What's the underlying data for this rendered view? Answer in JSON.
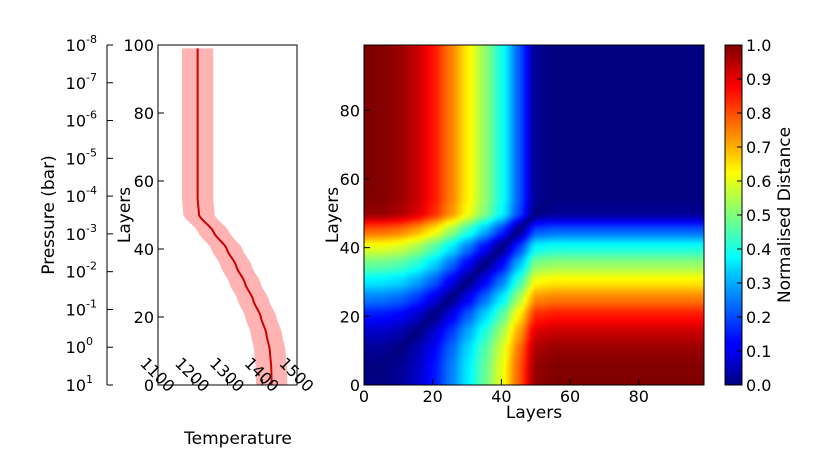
{
  "chart_data": [
    {
      "type": "line",
      "xlabel": "Temperature",
      "ylabel": "Layers",
      "ylabel2": "Pressure (bar)",
      "xlim": [
        1100,
        1500
      ],
      "ylim": [
        0,
        100
      ],
      "xticks": [
        1100,
        1200,
        1300,
        1400,
        1500
      ],
      "yticks": [
        0,
        20,
        40,
        60,
        80,
        100
      ],
      "xtick_labels": [
        "1100",
        "1200",
        "1300",
        "1400",
        "1500"
      ],
      "ytick_labels": [
        "0",
        "20",
        "40",
        "60",
        "80",
        "100"
      ],
      "pressure_ticks": [
        {
          "base": "10",
          "exp": "-8"
        },
        {
          "base": "10",
          "exp": "-7"
        },
        {
          "base": "10",
          "exp": "-6"
        },
        {
          "base": "10",
          "exp": "-5"
        },
        {
          "base": "10",
          "exp": "-4"
        },
        {
          "base": "10",
          "exp": "-3"
        },
        {
          "base": "10",
          "exp": "-2"
        },
        {
          "base": "10",
          "exp": "-1"
        },
        {
          "base": "10",
          "exp": "0"
        },
        {
          "base": "10",
          "exp": "1"
        }
      ],
      "series": [
        {
          "layers": [
            0,
            5,
            10,
            15,
            20,
            25,
            30,
            35,
            40,
            45,
            50,
            55,
            60,
            70,
            80,
            90,
            99
          ],
          "temperature": [
            1427,
            1426,
            1422,
            1412,
            1396,
            1374,
            1350,
            1325,
            1298,
            1260,
            1218,
            1214,
            1214,
            1214,
            1214,
            1214,
            1214
          ],
          "band_halfwidth": 45
        }
      ],
      "colors": {
        "line": "#cc0000",
        "band": "#ffb3b3"
      }
    },
    {
      "type": "heatmap",
      "xlabel": "Layers",
      "ylabel": "Layers",
      "xlim": [
        0,
        99
      ],
      "ylim": [
        0,
        99
      ],
      "xticks": [
        0,
        20,
        40,
        60,
        80
      ],
      "yticks": [
        0,
        20,
        40,
        60,
        80
      ],
      "xtick_labels": [
        "0",
        "20",
        "40",
        "60",
        "80"
      ],
      "ytick_labels": [
        "0",
        "20",
        "40",
        "60",
        "80"
      ],
      "colorbar": {
        "label": "Normalised Distance",
        "range": [
          0.0,
          1.0
        ],
        "ticks": [
          0.0,
          0.1,
          0.2,
          0.3,
          0.4,
          0.5,
          0.6,
          0.7,
          0.8,
          0.9,
          1.0
        ],
        "tick_labels": [
          "0.0",
          "0.1",
          "0.2",
          "0.3",
          "0.4",
          "0.5",
          "0.6",
          "0.7",
          "0.8",
          "0.9",
          "1.0"
        ],
        "colormap": "jet"
      }
    }
  ]
}
